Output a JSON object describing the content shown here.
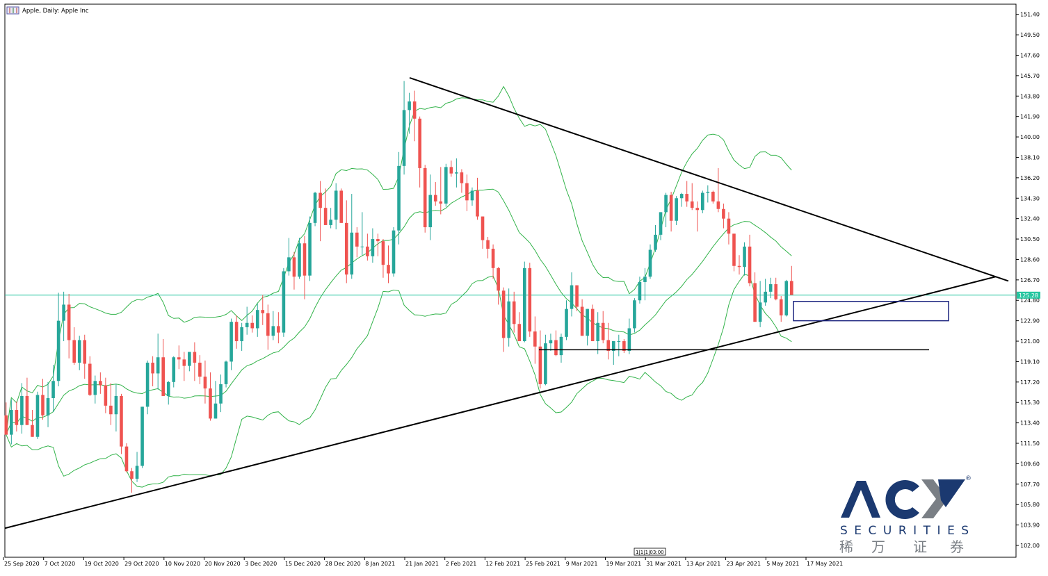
{
  "window": {
    "title": "Apple, Daily:  Apple Inc",
    "time_marker": "1|1|1|03:00"
  },
  "logo": {
    "brand": "ACY",
    "sub": "SECURITIES",
    "cn": [
      "稀",
      "万",
      "证",
      "券"
    ],
    "registered": "®",
    "colors": {
      "primary": "#1b3970",
      "secondary": "#7a7f85"
    }
  },
  "chart_data": {
    "type": "candlestick",
    "symbol": "Apple",
    "timeframe": "Daily",
    "title": "Apple, Daily:  Apple Inc",
    "ylim": [
      100.9,
      152.35
    ],
    "y_ticks": [
      "151.40",
      "149.50",
      "147.60",
      "145.70",
      "143.80",
      "141.90",
      "140.00",
      "138.10",
      "136.20",
      "134.30",
      "132.40",
      "130.50",
      "128.60",
      "126.70",
      "124.80",
      "122.90",
      "121.00",
      "119.10",
      "117.20",
      "115.30",
      "113.40",
      "111.50",
      "109.60",
      "107.70",
      "105.80",
      "103.90",
      "102.00"
    ],
    "x_tick_labels": [
      "25 Sep 2020",
      "7 Oct 2020",
      "19 Oct 2020",
      "29 Oct 2020",
      "10 Nov 2020",
      "20 Nov 2020",
      "3 Dec 2020",
      "15 Dec 2020",
      "28 Dec 2020",
      "8 Jan 2021",
      "21 Jan 2021",
      "2 Feb 2021",
      "12 Feb 2021",
      "25 Feb 2021",
      "9 Mar 2021",
      "19 Mar 2021",
      "31 Mar 2021",
      "13 Apr 2021",
      "23 Apr 2021",
      "5 May 2021",
      "17 May 2021"
    ],
    "current_price": "125.28",
    "current_price_value": 125.28,
    "indicators": [
      "Bollinger Bands"
    ],
    "colors": {
      "bull": "#26a69a",
      "bear": "#ef5350",
      "bands": "#32b34a",
      "price_line": "#26c6a0",
      "trendline": "#000000",
      "box": "#1a237e"
    },
    "candles": [
      [
        114.1,
        115.3,
        112.3,
        112.3
      ],
      [
        112.3,
        115.6,
        111.4,
        114.6
      ],
      [
        114.6,
        115.4,
        112.6,
        113.2
      ],
      [
        113.2,
        117.1,
        112.4,
        115.9
      ],
      [
        115.9,
        117.6,
        113.7,
        113.2
      ],
      [
        113.2,
        114.6,
        112.1,
        112.1
      ],
      [
        112.1,
        116.3,
        111.9,
        116.0
      ],
      [
        116.0,
        117.5,
        113.7,
        114.1
      ],
      [
        114.1,
        117.2,
        113.0,
        115.7
      ],
      [
        115.7,
        118.8,
        114.4,
        117.3
      ],
      [
        117.3,
        125.5,
        116.8,
        122.9
      ],
      [
        122.9,
        125.6,
        121.0,
        124.4
      ],
      [
        124.4,
        125.4,
        119.4,
        121.1
      ],
      [
        121.1,
        122.3,
        118.8,
        119.0
      ],
      [
        119.0,
        121.5,
        118.3,
        121.1
      ],
      [
        121.1,
        121.6,
        117.5,
        118.9
      ],
      [
        118.9,
        119.6,
        115.9,
        116.0
      ],
      [
        116.0,
        117.8,
        115.2,
        117.3
      ],
      [
        117.3,
        118.1,
        116.1,
        116.9
      ],
      [
        116.9,
        117.6,
        114.3,
        115.0
      ],
      [
        115.0,
        117.1,
        113.2,
        114.2
      ],
      [
        114.2,
        117.0,
        112.6,
        115.9
      ],
      [
        115.9,
        116.1,
        110.5,
        111.2
      ],
      [
        111.2,
        111.5,
        108.8,
        108.9
      ],
      [
        108.9,
        109.2,
        106.9,
        108.2
      ],
      [
        108.2,
        110.7,
        107.9,
        109.4
      ],
      [
        109.4,
        114.8,
        109.2,
        114.9
      ],
      [
        114.9,
        119.2,
        114.2,
        119.0
      ],
      [
        119.0,
        119.6,
        116.8,
        118.0
      ],
      [
        118.0,
        121.7,
        116.5,
        119.5
      ],
      [
        119.5,
        121.2,
        116.0,
        115.9
      ],
      [
        115.9,
        117.3,
        115.1,
        117.2
      ],
      [
        117.2,
        119.6,
        116.7,
        119.5
      ],
      [
        119.5,
        120.6,
        118.4,
        119.3
      ],
      [
        119.3,
        120.0,
        117.3,
        118.7
      ],
      [
        118.7,
        119.8,
        118.2,
        120.0
      ],
      [
        120.0,
        120.9,
        117.3,
        119.0
      ],
      [
        119.0,
        119.7,
        117.0,
        117.7
      ],
      [
        117.7,
        119.2,
        115.2,
        116.6
      ],
      [
        116.6,
        118.1,
        113.6,
        113.8
      ],
      [
        113.8,
        117.3,
        113.8,
        115.2
      ],
      [
        115.2,
        117.9,
        114.4,
        117.0
      ],
      [
        117.0,
        119.2,
        116.7,
        119.1
      ],
      [
        119.1,
        123.1,
        118.3,
        122.8
      ],
      [
        122.8,
        123.4,
        120.3,
        121.0
      ],
      [
        121.0,
        122.7,
        120.1,
        122.3
      ],
      [
        122.3,
        124.2,
        121.6,
        122.7
      ],
      [
        122.7,
        123.4,
        121.8,
        122.2
      ],
      [
        122.2,
        124.5,
        121.4,
        123.9
      ],
      [
        123.9,
        125.3,
        122.5,
        123.6
      ],
      [
        123.6,
        124.4,
        120.2,
        121.5
      ],
      [
        121.5,
        123.8,
        121.1,
        122.4
      ],
      [
        122.4,
        123.7,
        120.8,
        121.8
      ],
      [
        121.8,
        127.8,
        121.4,
        127.5
      ],
      [
        127.5,
        130.6,
        127.1,
        128.8
      ],
      [
        128.8,
        129.3,
        125.8,
        127.0
      ],
      [
        127.0,
        130.6,
        126.8,
        130.1
      ],
      [
        130.1,
        130.8,
        124.9,
        127.1
      ],
      [
        127.1,
        132.6,
        126.6,
        132.0
      ],
      [
        132.0,
        134.9,
        131.7,
        134.8
      ],
      [
        134.8,
        135.9,
        130.3,
        133.4
      ],
      [
        133.4,
        135.2,
        131.9,
        131.8
      ],
      [
        131.8,
        133.4,
        131.5,
        132.3
      ],
      [
        132.3,
        135.7,
        131.4,
        135.0
      ],
      [
        135.0,
        135.2,
        132.0,
        132.0
      ],
      [
        132.0,
        134.1,
        126.4,
        127.2
      ],
      [
        127.2,
        134.7,
        126.8,
        131.1
      ],
      [
        131.1,
        131.6,
        128.8,
        129.8
      ],
      [
        129.8,
        133.0,
        129.0,
        129.8
      ],
      [
        129.8,
        131.0,
        128.5,
        128.9
      ],
      [
        128.9,
        131.5,
        128.3,
        130.5
      ],
      [
        130.5,
        131.0,
        128.9,
        130.3
      ],
      [
        130.3,
        130.5,
        126.9,
        128.1
      ],
      [
        128.1,
        129.9,
        126.4,
        127.3
      ],
      [
        127.3,
        131.6,
        127.0,
        131.3
      ],
      [
        131.3,
        138.6,
        130.0,
        137.3
      ],
      [
        137.3,
        145.2,
        136.5,
        142.5
      ],
      [
        142.5,
        144.1,
        140.3,
        143.3
      ],
      [
        143.3,
        144.3,
        139.6,
        141.7
      ],
      [
        141.7,
        141.9,
        135.3,
        137.1
      ],
      [
        137.1,
        137.4,
        131.1,
        131.6
      ],
      [
        131.6,
        136.5,
        130.4,
        134.6
      ],
      [
        134.6,
        135.8,
        133.6,
        134.0
      ],
      [
        134.0,
        137.2,
        132.8,
        133.8
      ],
      [
        133.8,
        137.5,
        133.5,
        137.2
      ],
      [
        137.2,
        137.8,
        136.3,
        136.6
      ],
      [
        136.6,
        138.0,
        135.3,
        136.7
      ],
      [
        136.7,
        137.0,
        134.8,
        135.7
      ],
      [
        135.7,
        136.5,
        133.1,
        134.1
      ],
      [
        134.1,
        135.3,
        133.6,
        135.0
      ],
      [
        135.0,
        136.2,
        132.3,
        132.6
      ],
      [
        132.6,
        132.2,
        129.6,
        130.4
      ],
      [
        130.4,
        130.7,
        128.7,
        129.6
      ],
      [
        129.6,
        130.0,
        126.8,
        127.8
      ],
      [
        127.8,
        127.9,
        124.4,
        125.7
      ],
      [
        125.7,
        126.0,
        120.0,
        121.3
      ],
      [
        121.3,
        125.9,
        120.5,
        124.7
      ],
      [
        124.7,
        125.6,
        121.8,
        122.6
      ],
      [
        122.6,
        123.7,
        121.3,
        121.0
      ],
      [
        121.0,
        128.4,
        120.9,
        127.8
      ],
      [
        127.8,
        128.3,
        121.4,
        121.9
      ],
      [
        121.9,
        123.3,
        118.9,
        120.5
      ],
      [
        120.5,
        122.0,
        116.6,
        117.0
      ],
      [
        117.0,
        121.6,
        116.9,
        120.8
      ],
      [
        120.8,
        121.7,
        120.1,
        121.1
      ],
      [
        121.1,
        122.0,
        119.6,
        119.7
      ],
      [
        119.7,
        121.7,
        119.0,
        121.4
      ],
      [
        121.4,
        124.8,
        121.1,
        124.0
      ],
      [
        124.0,
        127.4,
        123.3,
        126.2
      ],
      [
        126.2,
        125.9,
        123.8,
        124.2
      ],
      [
        124.2,
        124.9,
        121.9,
        121.5
      ],
      [
        121.5,
        124.0,
        120.6,
        124.0
      ],
      [
        124.0,
        124.4,
        121.0,
        121.0
      ],
      [
        121.0,
        123.7,
        119.8,
        122.7
      ],
      [
        122.7,
        123.8,
        120.8,
        121.1
      ],
      [
        121.1,
        122.7,
        119.3,
        120.1
      ],
      [
        120.1,
        121.0,
        118.8,
        121.0
      ],
      [
        121.0,
        121.6,
        119.6,
        121.0
      ],
      [
        121.0,
        121.2,
        119.9,
        120.1
      ],
      [
        120.1,
        123.1,
        119.8,
        122.2
      ],
      [
        122.2,
        125.0,
        121.8,
        124.8
      ],
      [
        124.8,
        127.0,
        124.5,
        126.5
      ],
      [
        126.5,
        127.8,
        124.8,
        127.0
      ],
      [
        127.0,
        130.0,
        126.8,
        129.5
      ],
      [
        129.5,
        131.8,
        129.3,
        130.9
      ],
      [
        130.9,
        133.0,
        130.4,
        133.0
      ],
      [
        133.0,
        134.8,
        131.6,
        134.6
      ],
      [
        134.6,
        134.9,
        131.2,
        132.2
      ],
      [
        132.2,
        134.5,
        131.8,
        134.3
      ],
      [
        134.3,
        134.8,
        133.5,
        134.7
      ],
      [
        134.7,
        135.9,
        133.5,
        134.0
      ],
      [
        134.0,
        135.7,
        133.2,
        133.4
      ],
      [
        133.4,
        134.0,
        131.2,
        133.2
      ],
      [
        133.2,
        135.0,
        132.9,
        134.8
      ],
      [
        134.8,
        135.5,
        133.9,
        134.9
      ],
      [
        134.9,
        135.0,
        133.8,
        134.0
      ],
      [
        134.0,
        137.1,
        133.0,
        133.3
      ],
      [
        133.3,
        133.8,
        131.5,
        132.4
      ],
      [
        132.4,
        133.0,
        130.0,
        131.0
      ],
      [
        131.0,
        130.9,
        127.5,
        128.0
      ],
      [
        128.0,
        129.0,
        127.2,
        127.9
      ],
      [
        127.9,
        130.2,
        127.1,
        129.8
      ],
      [
        129.8,
        130.9,
        126.1,
        126.4
      ],
      [
        126.4,
        127.4,
        122.8,
        122.8
      ],
      [
        122.8,
        126.6,
        122.3,
        124.6
      ],
      [
        124.6,
        126.8,
        124.3,
        125.6
      ],
      [
        125.6,
        126.9,
        125.0,
        126.3
      ],
      [
        126.3,
        126.9,
        124.8,
        124.9
      ],
      [
        124.9,
        125.2,
        122.8,
        123.4
      ],
      [
        123.4,
        126.7,
        123.3,
        126.6
      ],
      [
        126.6,
        128.0,
        125.5,
        125.3
      ]
    ],
    "trendlines": [
      {
        "name": "resistance",
        "points": [
          [
            "21 Jan 2021",
            145.5
          ],
          [
            "apex",
            126.8
          ]
        ]
      },
      {
        "name": "support",
        "points": [
          [
            "25 Sep 2020",
            103.6
          ],
          [
            "apex",
            127.2
          ]
        ]
      },
      {
        "name": "horizontal support",
        "value": 120.2
      }
    ],
    "zone": {
      "low": 122.9,
      "high": 124.7
    }
  }
}
